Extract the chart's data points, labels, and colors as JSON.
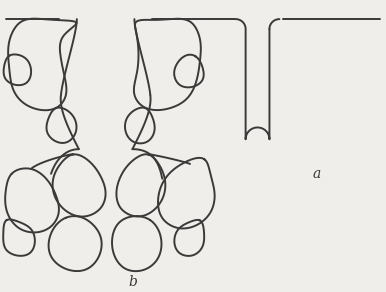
{
  "bg_color": "#f0eeea",
  "line_color": "#3a3a3a",
  "line_width": 1.4,
  "label_a": "a",
  "label_b": "b",
  "figsize": [
    3.86,
    2.92
  ],
  "dpi": 100
}
